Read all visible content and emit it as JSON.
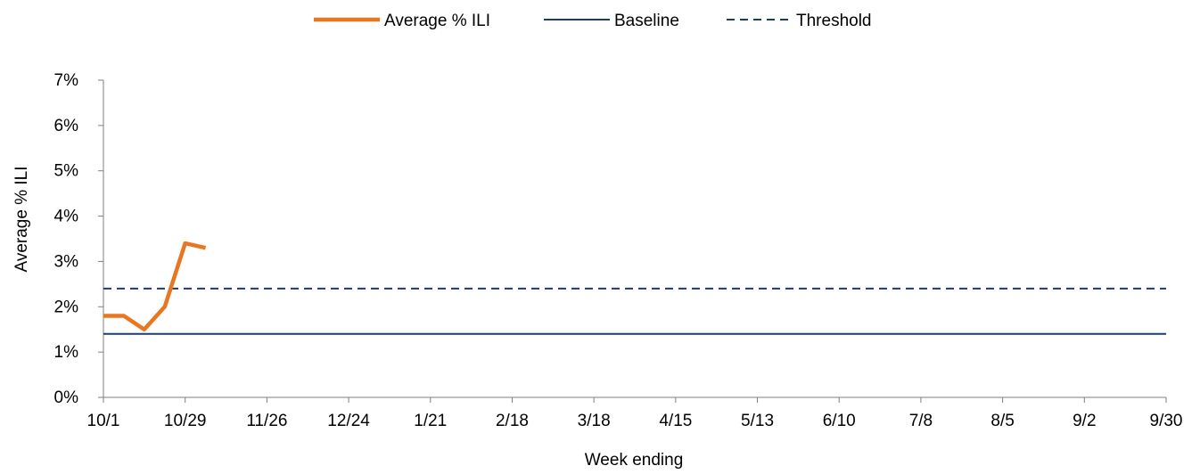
{
  "chart_data": {
    "type": "line",
    "title": "",
    "xlabel": "Week ending",
    "ylabel": "Average % ILI",
    "x_tick_labels": [
      "10/1",
      "10/29",
      "11/26",
      "12/24",
      "1/21",
      "2/18",
      "3/18",
      "4/15",
      "5/13",
      "6/10",
      "7/8",
      "8/5",
      "9/2",
      "9/30"
    ],
    "y_tick_labels": [
      "0%",
      "1%",
      "2%",
      "3%",
      "4%",
      "5%",
      "6%",
      "7%"
    ],
    "ylim": [
      0,
      7
    ],
    "y_ticks": [
      0,
      1,
      2,
      3,
      4,
      5,
      6,
      7
    ],
    "weeks_total": 52,
    "grid": false,
    "legend_position": "top",
    "series": [
      {
        "name": "Average % ILI",
        "color": "#E87722",
        "style": "solid-thick",
        "x": [
          "10/1",
          "10/8",
          "10/15",
          "10/22",
          "10/29",
          "11/5"
        ],
        "values": [
          1.8,
          1.8,
          1.5,
          2.0,
          3.4,
          3.3
        ]
      },
      {
        "name": "Baseline",
        "color": "#1F3A6E",
        "style": "solid",
        "x": [
          "10/1",
          "9/30"
        ],
        "values": [
          1.4,
          1.4
        ]
      },
      {
        "name": "Threshold",
        "color": "#1F3A6E",
        "style": "dashed",
        "x": [
          "10/1",
          "9/30"
        ],
        "values": [
          2.4,
          2.4
        ]
      }
    ]
  }
}
